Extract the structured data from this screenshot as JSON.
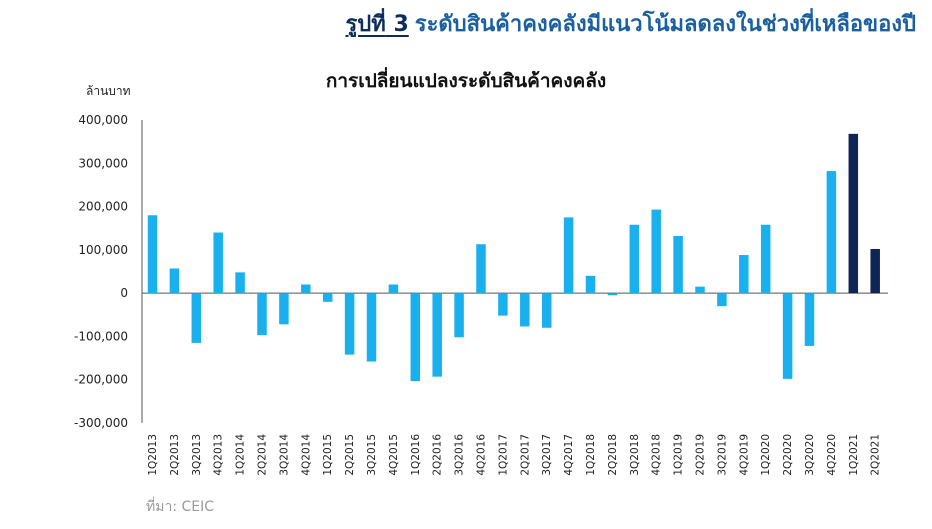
{
  "figure": {
    "number_label": "รูปที่",
    "number": "3",
    "title": "ระดับสินค้าคงคลังมีแนวโน้มลดลงในช่วงที่เหลือของปี"
  },
  "source": "ที่มา: CEIC",
  "colors": {
    "primary": "#1ab0ee",
    "highlight": "#0f2555",
    "title": "#1a5fa0"
  },
  "chart_data": {
    "type": "bar",
    "title": "การเปลี่ยนแปลงระดับสินค้าคงคลัง",
    "ylabel": "ล้านบาท",
    "xlabel": "",
    "ylim": [
      -300000,
      400000
    ],
    "yticks": [
      400000,
      300000,
      200000,
      100000,
      0,
      -100000,
      -200000,
      -300000
    ],
    "ytick_labels": [
      "400,000",
      "300,000",
      "200,000",
      "100,000",
      "0",
      "-100,000",
      "-200,000",
      "-300,000"
    ],
    "categories": [
      "1Q2013",
      "2Q2013",
      "3Q2013",
      "4Q2013",
      "1Q2014",
      "2Q2014",
      "3Q2014",
      "4Q2014",
      "1Q2015",
      "2Q2015",
      "3Q2015",
      "4Q2015",
      "1Q2016",
      "2Q2016",
      "3Q2016",
      "4Q2016",
      "1Q2017",
      "2Q2017",
      "3Q2017",
      "4Q2017",
      "1Q2018",
      "2Q2018",
      "3Q2018",
      "4Q2018",
      "1Q2019",
      "2Q2019",
      "3Q2019",
      "4Q2019",
      "1Q2020",
      "2Q2020",
      "3Q2020",
      "4Q2020",
      "1Q2021",
      "2Q2021"
    ],
    "values": [
      180000,
      57000,
      -115000,
      140000,
      48000,
      -97000,
      -72000,
      20000,
      -20000,
      -142000,
      -158000,
      20000,
      -203000,
      -193000,
      -102000,
      113000,
      -52000,
      -77000,
      -80000,
      175000,
      40000,
      -5000,
      158000,
      193000,
      132000,
      15000,
      -30000,
      88000,
      158000,
      -198000,
      -122000,
      282000,
      368000,
      102000
    ],
    "highlight_categories": [
      "1Q2021",
      "2Q2021"
    ],
    "grid": false
  }
}
